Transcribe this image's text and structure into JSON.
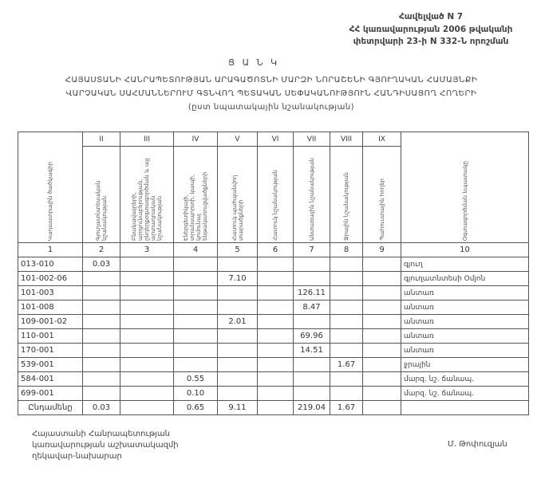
{
  "annex": {
    "lines": [
      "Հավելված N 7",
      "ՀՀ կառավարության 2006 թվականի",
      "փետրվարի 23-ի N 332-Ն որոշման"
    ]
  },
  "list_title": "Ց Ա Ն Կ",
  "title": {
    "line1": "ՀԱՅԱՍՏԱՆԻ ՀԱՆՐԱՊԵՏՈՒԹՅԱՆ ԱՐԱԳԱԾՈՏՆԻ ՄԱՐԶԻ ՆՈՐԱՇԵՆԻ ԳՅՈՒՂԱԿԱՆ ՀԱՄԱՅՆՔԻ",
    "line2": "ՎԱՐՉԱԿԱՆ ՍԱՀՄԱՆՆԵՐՈՒՄ ԳՏՆՎՈՂ ՊԵՏԱԿԱՆ ՍԵՓԱԿԱՆՈՒԹՅՈՒՆ ՀԱՆԴԻՍԱՑՈՂ ՀՈՂԵՐԻ",
    "line3": "(ըստ նպատակային նշանակության)"
  },
  "table": {
    "roman": [
      "",
      "II",
      "III",
      "IV",
      "V",
      "VI",
      "VII",
      "VIII",
      "IX",
      ""
    ],
    "headers": [
      "Կադաստրային ծածկագիր",
      "Գյուղատնտեսական նշանակության",
      "Բնակավայրերի, արդյունաբերության, ընդերքօգտագործման և այլ արտադրական նշանակության",
      "Էներգետիկայի, տրանսպորտի, կապի, կոմունալ ենթակառուցվածքների",
      "Հատուկ պահպանվող տարածքների",
      "Հատուկ նշանակության",
      "Անտառային նշանակության",
      "Ջրային նշանակության",
      "Պահուստային հողեր",
      "Օգտագործման նպատակը"
    ],
    "numbers": [
      "1",
      "2",
      "3",
      "4",
      "5",
      "6",
      "7",
      "8",
      "9",
      "10"
    ],
    "rows": [
      {
        "code": "013-010",
        "c2": "0.03",
        "c3": "",
        "c4": "",
        "c5": "",
        "c6": "",
        "c7": "",
        "c8": "",
        "c9": "",
        "use": "գյուղ"
      },
      {
        "code": "101-002-06",
        "c2": "",
        "c3": "",
        "c4": "",
        "c5": "7.10",
        "c6": "",
        "c7": "",
        "c8": "",
        "c9": "",
        "use": "գյուղատնտեսի Օմյոն"
      },
      {
        "code": "101-003",
        "c2": "",
        "c3": "",
        "c4": "",
        "c5": "",
        "c6": "",
        "c7": "126.11",
        "c8": "",
        "c9": "",
        "use": "անտառ"
      },
      {
        "code": "101-008",
        "c2": "",
        "c3": "",
        "c4": "",
        "c5": "",
        "c6": "",
        "c7": "8.47",
        "c8": "",
        "c9": "",
        "use": "անտառ"
      },
      {
        "code": "109-001-02",
        "c2": "",
        "c3": "",
        "c4": "",
        "c5": "2.01",
        "c6": "",
        "c7": "",
        "c8": "",
        "c9": "",
        "use": "անտառ"
      },
      {
        "code": "110-001",
        "c2": "",
        "c3": "",
        "c4": "",
        "c5": "",
        "c6": "",
        "c7": "69.96",
        "c8": "",
        "c9": "",
        "use": "անտառ"
      },
      {
        "code": "170-001",
        "c2": "",
        "c3": "",
        "c4": "",
        "c5": "",
        "c6": "",
        "c7": "14.51",
        "c8": "",
        "c9": "",
        "use": "անտառ"
      },
      {
        "code": "539-001",
        "c2": "",
        "c3": "",
        "c4": "",
        "c5": "",
        "c6": "",
        "c7": "",
        "c8": "1.67",
        "c9": "",
        "use": "ջրային"
      },
      {
        "code": "584-001",
        "c2": "",
        "c3": "",
        "c4": "0.55",
        "c5": "",
        "c6": "",
        "c7": "",
        "c8": "",
        "c9": "",
        "use": "մարզ. նշ. ճանապ."
      },
      {
        "code": "699-001",
        "c2": "",
        "c3": "",
        "c4": "0.10",
        "c5": "",
        "c6": "",
        "c7": "",
        "c8": "",
        "c9": "",
        "use": "մարզ. նշ. ճանապ."
      }
    ],
    "total": {
      "label": "Ընդամենը",
      "c2": "0.03",
      "c3": "",
      "c4": "0.65",
      "c5": "9.11",
      "c6": "",
      "c7": "219.04",
      "c8": "1.67",
      "c9": "",
      "use": ""
    }
  },
  "footer": {
    "lines": [
      "Հայաստանի Հանրապետության",
      "կառավարության աշխատակազմի",
      "ղեկավար-նախարար"
    ],
    "signature": "Մ. Թոփուզյան"
  }
}
